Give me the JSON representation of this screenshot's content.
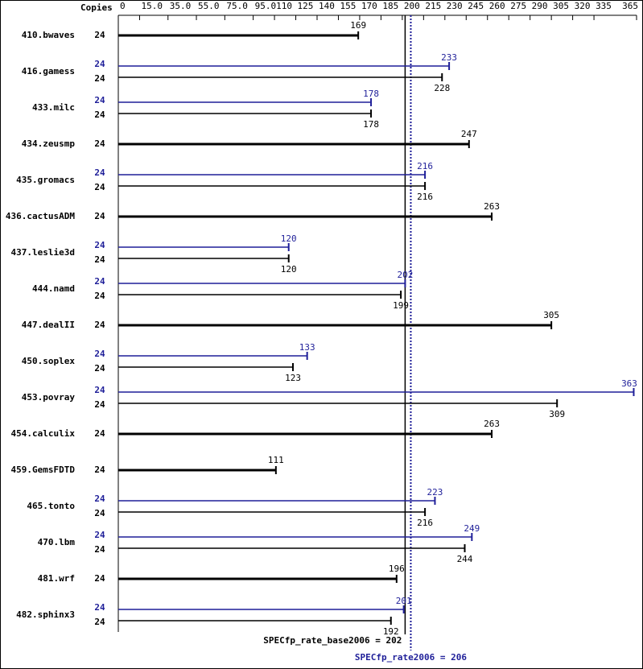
{
  "chart_data": {
    "type": "bar",
    "copies_header": "Copies",
    "categories": [
      "410.bwaves",
      "416.gamess",
      "433.milc",
      "434.zeusmp",
      "435.gromacs",
      "436.cactusADM",
      "437.leslie3d",
      "444.namd",
      "447.dealII",
      "450.soplex",
      "453.povray",
      "454.calculix",
      "459.GemsFDTD",
      "465.tonto",
      "470.lbm",
      "481.wrf",
      "482.sphinx3"
    ],
    "series": [
      {
        "color": "#1f1f99",
        "copies": [
          null,
          24,
          24,
          null,
          24,
          null,
          24,
          24,
          null,
          24,
          24,
          null,
          null,
          24,
          24,
          null,
          24
        ],
        "values": [
          null,
          233,
          178,
          null,
          216,
          null,
          120,
          202,
          null,
          133,
          363,
          null,
          null,
          223,
          249,
          null,
          201
        ]
      },
      {
        "color": "#000000",
        "copies": [
          24,
          24,
          24,
          24,
          24,
          24,
          24,
          24,
          24,
          24,
          24,
          24,
          24,
          24,
          24,
          24,
          24
        ],
        "values": [
          169,
          228,
          178,
          247,
          216,
          263,
          120,
          199,
          305,
          123,
          309,
          263,
          111,
          216,
          244,
          196,
          192
        ]
      }
    ],
    "reference_lines": [
      {
        "text": "SPECfp_rate_base2006 = 202",
        "value": 202,
        "color": "#000000"
      },
      {
        "text": "SPECfp_rate2006 = 206",
        "value": 206,
        "color": "#1f1f99"
      }
    ],
    "xlim": [
      0,
      365
    ],
    "xticks": [
      0,
      {
        "value": 15,
        "label": "15.0"
      },
      {
        "value": 35,
        "label": "35.0"
      },
      {
        "value": 55,
        "label": "55.0"
      },
      {
        "value": 75,
        "label": "75.0"
      },
      {
        "value": 95,
        "label": "95.0"
      },
      110,
      125,
      140,
      155,
      170,
      185,
      200,
      215,
      230,
      245,
      260,
      275,
      290,
      305,
      320,
      335,
      365
    ]
  }
}
